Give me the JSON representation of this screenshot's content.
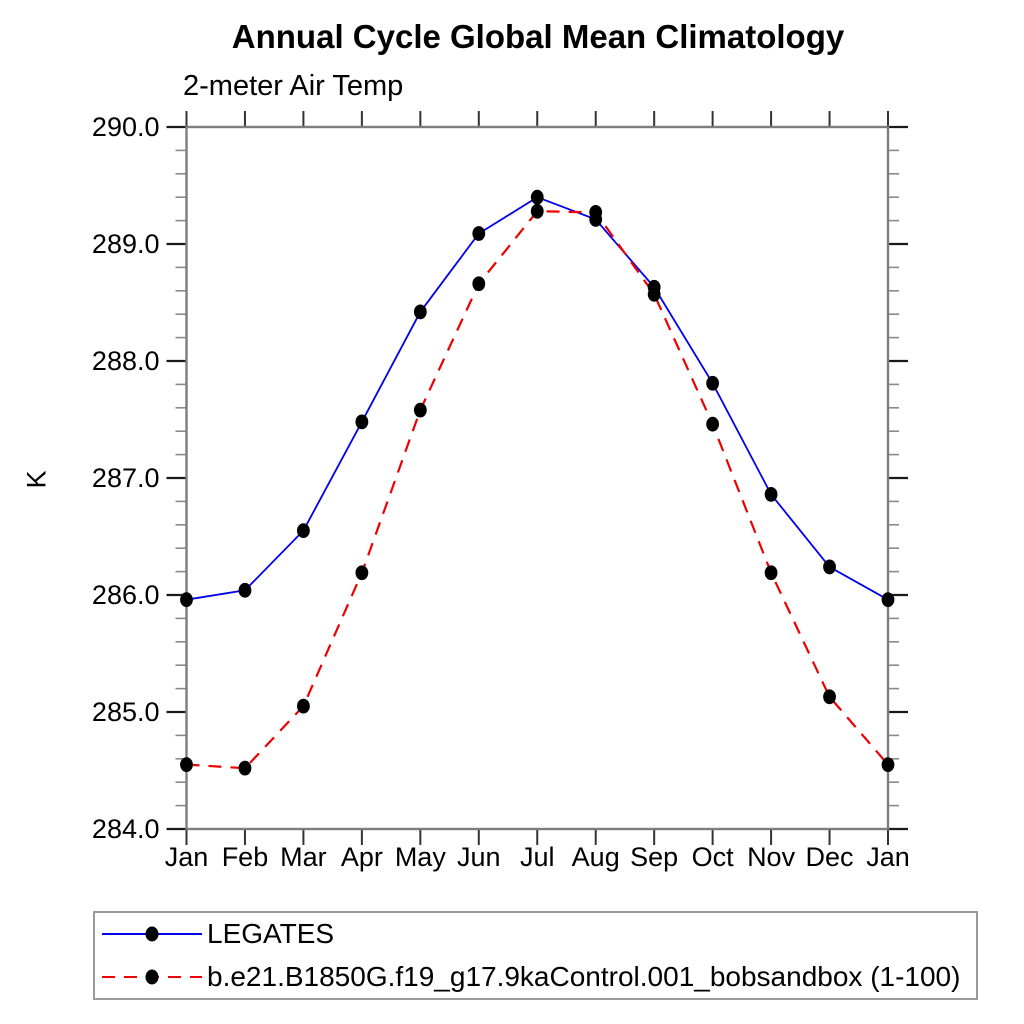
{
  "chart_data": {
    "type": "line",
    "title": "Annual Cycle Global Mean Climatology",
    "subtitle": "2-meter Air Temp",
    "ylabel": "K",
    "categories": [
      "Jan",
      "Feb",
      "Mar",
      "Apr",
      "May",
      "Jun",
      "Jul",
      "Aug",
      "Sep",
      "Oct",
      "Nov",
      "Dec",
      "Jan"
    ],
    "ylim": [
      284.0,
      290.0
    ],
    "ytick_step": 1.0,
    "yminor_step": 0.2,
    "ytick_labels": [
      "284.0",
      "285.0",
      "286.0",
      "287.0",
      "288.0",
      "289.0",
      "290.0"
    ],
    "grid": false,
    "legend_position": "bottom-left-box",
    "series": [
      {
        "name": "LEGATES",
        "color": "#0000ee",
        "line_style": "solid",
        "marker": "filled-black-circle",
        "values": [
          285.96,
          286.04,
          286.55,
          287.48,
          288.42,
          289.09,
          289.4,
          289.21,
          288.63,
          287.81,
          286.86,
          286.24,
          285.96
        ]
      },
      {
        "name": "b.e21.B1850G.f19_g17.9kaControl.001_bobsandbox (1-100)",
        "color": "#ee0000",
        "line_style": "dashed",
        "marker": "filled-black-circle",
        "values": [
          284.55,
          284.52,
          285.05,
          286.19,
          287.58,
          288.66,
          289.28,
          289.27,
          288.57,
          287.46,
          286.19,
          285.13,
          284.55
        ]
      }
    ]
  }
}
